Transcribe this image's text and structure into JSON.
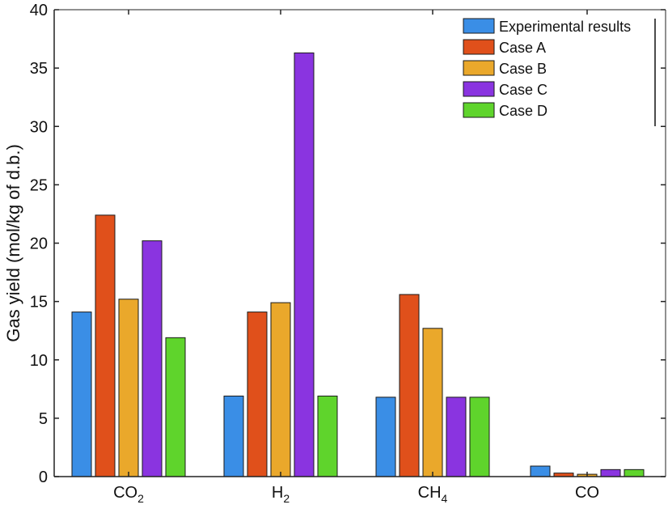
{
  "chart_data": {
    "type": "bar",
    "title": "",
    "xlabel": "",
    "ylabel": "Gas yield (mol/kg of d.b.)",
    "ylim": [
      0,
      40
    ],
    "yticks": [
      0,
      5,
      10,
      15,
      20,
      25,
      30,
      35,
      40
    ],
    "grid": false,
    "legend_position": "top-right",
    "categories": [
      {
        "base": "CO",
        "sub": "2"
      },
      {
        "base": "H",
        "sub": "2"
      },
      {
        "base": "CH",
        "sub": "4"
      },
      {
        "base": "CO",
        "sub": ""
      }
    ],
    "series": [
      {
        "name": "Experimental results",
        "color": "#3a8ee6",
        "values": [
          14.1,
          6.9,
          6.8,
          0.9
        ]
      },
      {
        "name": "Case A",
        "color": "#e0501b",
        "values": [
          22.4,
          14.1,
          15.6,
          0.3
        ]
      },
      {
        "name": "Case B",
        "color": "#eaa82b",
        "values": [
          15.2,
          14.9,
          12.7,
          0.2
        ]
      },
      {
        "name": "Case C",
        "color": "#8a34e0",
        "values": [
          20.2,
          36.3,
          6.8,
          0.6
        ]
      },
      {
        "name": "Case D",
        "color": "#5fd42c",
        "values": [
          11.9,
          6.9,
          6.8,
          0.6
        ]
      }
    ]
  }
}
